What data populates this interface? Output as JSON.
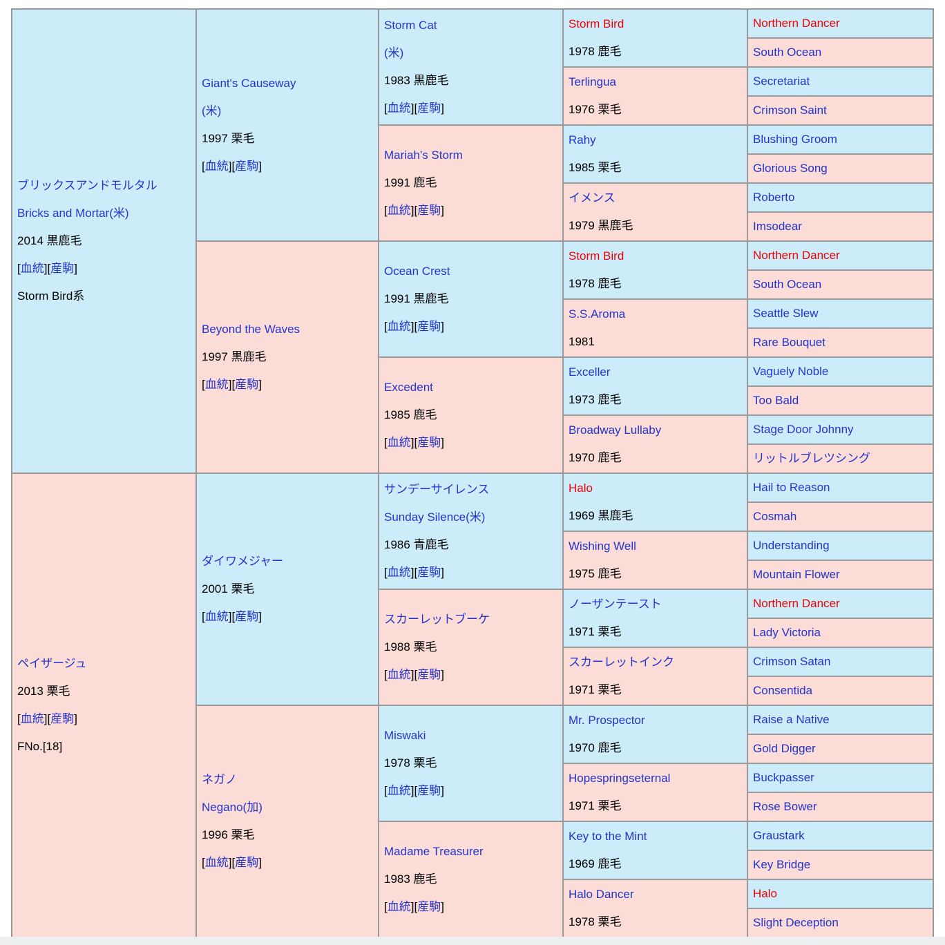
{
  "colors": {
    "male_bg": "#cdecfa",
    "female_bg": "#fbdcd7",
    "border": "#9a9a9a",
    "link": "#2333cc",
    "inbreed_highlight": "#ee0000",
    "text": "#000000"
  },
  "labels": {
    "open": "[",
    "blood": "血統",
    "mid": "][",
    "offspring": "産駒",
    "close": "]"
  },
  "generations": [
    [
      {
        "sex": "m",
        "lines": [
          {
            "t": "ブリックスアンドモルタル",
            "s": "link"
          },
          {
            "t": "Bricks and Mortar(米)",
            "s": "link"
          },
          {
            "t": "2014 黒鹿毛",
            "s": "plain"
          },
          {
            "s": "links"
          },
          {
            "t": "Storm Bird系",
            "s": "plain"
          }
        ]
      },
      {
        "sex": "f",
        "lines": [
          {
            "t": "ペイザージュ",
            "s": "link"
          },
          {
            "t": "2013 栗毛",
            "s": "plain"
          },
          {
            "s": "links"
          },
          {
            "t": "FNo.[18]",
            "s": "plain"
          }
        ]
      }
    ],
    [
      {
        "sex": "m",
        "lines": [
          {
            "t": "Giant's Causeway",
            "s": "link"
          },
          {
            "t": "(米)",
            "s": "link"
          },
          {
            "t": "1997 栗毛",
            "s": "plain"
          },
          {
            "s": "links"
          }
        ]
      },
      {
        "sex": "f",
        "lines": [
          {
            "t": "Beyond the Waves",
            "s": "link"
          },
          {
            "t": "1997 黒鹿毛",
            "s": "plain"
          },
          {
            "s": "links"
          }
        ]
      },
      {
        "sex": "m",
        "lines": [
          {
            "t": "ダイワメジャー",
            "s": "link"
          },
          {
            "t": "2001 栗毛",
            "s": "plain"
          },
          {
            "s": "links"
          }
        ]
      },
      {
        "sex": "f",
        "lines": [
          {
            "t": "ネガノ",
            "s": "link"
          },
          {
            "t": "Negano(加)",
            "s": "link"
          },
          {
            "t": "1996 栗毛",
            "s": "plain"
          },
          {
            "s": "links"
          }
        ]
      }
    ],
    [
      {
        "sex": "m",
        "lines": [
          {
            "t": "Storm Cat",
            "s": "link"
          },
          {
            "t": "(米)",
            "s": "link"
          },
          {
            "t": "1983 黒鹿毛",
            "s": "plain"
          },
          {
            "s": "links"
          }
        ]
      },
      {
        "sex": "f",
        "lines": [
          {
            "t": "Mariah's Storm",
            "s": "link"
          },
          {
            "t": "1991 鹿毛",
            "s": "plain"
          },
          {
            "s": "links"
          }
        ]
      },
      {
        "sex": "m",
        "lines": [
          {
            "t": "Ocean Crest",
            "s": "link"
          },
          {
            "t": "1991 黒鹿毛",
            "s": "plain"
          },
          {
            "s": "links"
          }
        ]
      },
      {
        "sex": "f",
        "lines": [
          {
            "t": "Excedent",
            "s": "link"
          },
          {
            "t": "1985 鹿毛",
            "s": "plain"
          },
          {
            "s": "links"
          }
        ]
      },
      {
        "sex": "m",
        "lines": [
          {
            "t": "サンデーサイレンス",
            "s": "link"
          },
          {
            "t": "Sunday Silence(米)",
            "s": "link"
          },
          {
            "t": "1986 青鹿毛",
            "s": "plain"
          },
          {
            "s": "links"
          }
        ]
      },
      {
        "sex": "f",
        "lines": [
          {
            "t": "スカーレットブーケ",
            "s": "link"
          },
          {
            "t": "1988 栗毛",
            "s": "plain"
          },
          {
            "s": "links"
          }
        ]
      },
      {
        "sex": "m",
        "lines": [
          {
            "t": "Miswaki",
            "s": "link"
          },
          {
            "t": "1978 栗毛",
            "s": "plain"
          },
          {
            "s": "links"
          }
        ]
      },
      {
        "sex": "f",
        "lines": [
          {
            "t": "Madame Treasurer",
            "s": "link"
          },
          {
            "t": "1983 鹿毛",
            "s": "plain"
          },
          {
            "s": "links"
          }
        ]
      }
    ],
    [
      {
        "sex": "m",
        "lines": [
          {
            "t": "Storm Bird",
            "s": "red"
          },
          {
            "t": "1978 鹿毛",
            "s": "plain"
          }
        ]
      },
      {
        "sex": "f",
        "lines": [
          {
            "t": "Terlingua",
            "s": "link"
          },
          {
            "t": "1976 栗毛",
            "s": "plain"
          }
        ]
      },
      {
        "sex": "m",
        "lines": [
          {
            "t": "Rahy",
            "s": "link"
          },
          {
            "t": "1985 栗毛",
            "s": "plain"
          }
        ]
      },
      {
        "sex": "f",
        "lines": [
          {
            "t": "イメンス",
            "s": "link"
          },
          {
            "t": "1979 黒鹿毛",
            "s": "plain"
          }
        ]
      },
      {
        "sex": "m",
        "lines": [
          {
            "t": "Storm Bird",
            "s": "red"
          },
          {
            "t": "1978 鹿毛",
            "s": "plain"
          }
        ]
      },
      {
        "sex": "f",
        "lines": [
          {
            "t": "S.S.Aroma",
            "s": "link"
          },
          {
            "t": "1981",
            "s": "plain"
          }
        ]
      },
      {
        "sex": "m",
        "lines": [
          {
            "t": "Exceller",
            "s": "link"
          },
          {
            "t": "1973 鹿毛",
            "s": "plain"
          }
        ]
      },
      {
        "sex": "f",
        "lines": [
          {
            "t": "Broadway Lullaby",
            "s": "link"
          },
          {
            "t": "1970 鹿毛",
            "s": "plain"
          }
        ]
      },
      {
        "sex": "m",
        "lines": [
          {
            "t": "Halo",
            "s": "red"
          },
          {
            "t": "1969 黒鹿毛",
            "s": "plain"
          }
        ]
      },
      {
        "sex": "f",
        "lines": [
          {
            "t": "Wishing Well",
            "s": "link"
          },
          {
            "t": "1975 鹿毛",
            "s": "plain"
          }
        ]
      },
      {
        "sex": "m",
        "lines": [
          {
            "t": "ノーザンテースト",
            "s": "link"
          },
          {
            "t": "1971 栗毛",
            "s": "plain"
          }
        ]
      },
      {
        "sex": "f",
        "lines": [
          {
            "t": "スカーレットインク",
            "s": "link"
          },
          {
            "t": "1971 栗毛",
            "s": "plain"
          }
        ]
      },
      {
        "sex": "m",
        "lines": [
          {
            "t": "Mr. Prospector",
            "s": "link"
          },
          {
            "t": "1970 鹿毛",
            "s": "plain"
          }
        ]
      },
      {
        "sex": "f",
        "lines": [
          {
            "t": "Hopespringseternal",
            "s": "link"
          },
          {
            "t": "1971 栗毛",
            "s": "plain"
          }
        ]
      },
      {
        "sex": "m",
        "lines": [
          {
            "t": "Key to the Mint",
            "s": "link"
          },
          {
            "t": "1969 鹿毛",
            "s": "plain"
          }
        ]
      },
      {
        "sex": "f",
        "lines": [
          {
            "t": "Halo Dancer",
            "s": "link"
          },
          {
            "t": "1978 栗毛",
            "s": "plain"
          }
        ]
      }
    ],
    [
      {
        "sex": "m",
        "lines": [
          {
            "t": "Northern Dancer",
            "s": "red"
          }
        ]
      },
      {
        "sex": "f",
        "lines": [
          {
            "t": "South Ocean",
            "s": "link"
          }
        ]
      },
      {
        "sex": "m",
        "lines": [
          {
            "t": "Secretariat",
            "s": "link"
          }
        ]
      },
      {
        "sex": "f",
        "lines": [
          {
            "t": "Crimson Saint",
            "s": "link"
          }
        ]
      },
      {
        "sex": "m",
        "lines": [
          {
            "t": "Blushing Groom",
            "s": "link"
          }
        ]
      },
      {
        "sex": "f",
        "lines": [
          {
            "t": "Glorious Song",
            "s": "link"
          }
        ]
      },
      {
        "sex": "m",
        "lines": [
          {
            "t": "Roberto",
            "s": "link"
          }
        ]
      },
      {
        "sex": "f",
        "lines": [
          {
            "t": "Imsodear",
            "s": "link"
          }
        ]
      },
      {
        "sex": "m",
        "lines": [
          {
            "t": "Northern Dancer",
            "s": "red"
          }
        ]
      },
      {
        "sex": "f",
        "lines": [
          {
            "t": "South Ocean",
            "s": "link"
          }
        ]
      },
      {
        "sex": "m",
        "lines": [
          {
            "t": "Seattle Slew",
            "s": "link"
          }
        ]
      },
      {
        "sex": "f",
        "lines": [
          {
            "t": "Rare Bouquet",
            "s": "link"
          }
        ]
      },
      {
        "sex": "m",
        "lines": [
          {
            "t": "Vaguely Noble",
            "s": "link"
          }
        ]
      },
      {
        "sex": "f",
        "lines": [
          {
            "t": "Too Bald",
            "s": "link"
          }
        ]
      },
      {
        "sex": "m",
        "lines": [
          {
            "t": "Stage Door Johnny",
            "s": "link"
          }
        ]
      },
      {
        "sex": "f",
        "lines": [
          {
            "t": "リットルブレツシング",
            "s": "link"
          }
        ]
      },
      {
        "sex": "m",
        "lines": [
          {
            "t": "Hail to Reason",
            "s": "link"
          }
        ]
      },
      {
        "sex": "f",
        "lines": [
          {
            "t": "Cosmah",
            "s": "link"
          }
        ]
      },
      {
        "sex": "m",
        "lines": [
          {
            "t": "Understanding",
            "s": "link"
          }
        ]
      },
      {
        "sex": "f",
        "lines": [
          {
            "t": "Mountain Flower",
            "s": "link"
          }
        ]
      },
      {
        "sex": "m",
        "lines": [
          {
            "t": "Northern Dancer",
            "s": "red"
          }
        ]
      },
      {
        "sex": "f",
        "lines": [
          {
            "t": "Lady Victoria",
            "s": "link"
          }
        ]
      },
      {
        "sex": "m",
        "lines": [
          {
            "t": "Crimson Satan",
            "s": "link"
          }
        ]
      },
      {
        "sex": "f",
        "lines": [
          {
            "t": "Consentida",
            "s": "link"
          }
        ]
      },
      {
        "sex": "m",
        "lines": [
          {
            "t": "Raise a Native",
            "s": "link"
          }
        ]
      },
      {
        "sex": "f",
        "lines": [
          {
            "t": "Gold Digger",
            "s": "link"
          }
        ]
      },
      {
        "sex": "m",
        "lines": [
          {
            "t": "Buckpasser",
            "s": "link"
          }
        ]
      },
      {
        "sex": "f",
        "lines": [
          {
            "t": "Rose Bower",
            "s": "link"
          }
        ]
      },
      {
        "sex": "m",
        "lines": [
          {
            "t": "Graustark",
            "s": "link"
          }
        ]
      },
      {
        "sex": "f",
        "lines": [
          {
            "t": "Key Bridge",
            "s": "link"
          }
        ]
      },
      {
        "sex": "m",
        "lines": [
          {
            "t": "Halo",
            "s": "red"
          }
        ]
      },
      {
        "sex": "f",
        "lines": [
          {
            "t": "Slight Deception",
            "s": "link"
          }
        ]
      }
    ]
  ]
}
